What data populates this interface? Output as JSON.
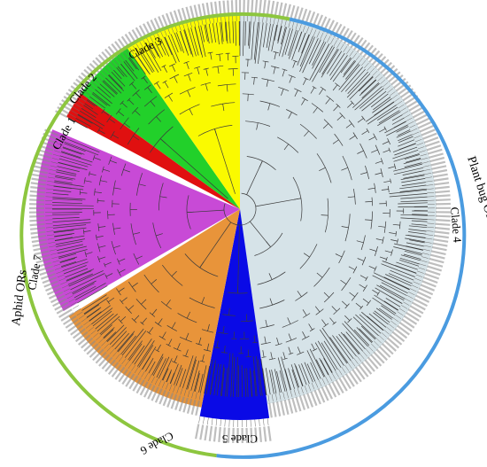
{
  "figure": {
    "type": "circular-phylogenetic-tree",
    "outer_groups": [
      {
        "id": "plant-bug",
        "label": "Plant bug ORs",
        "color": "#4a9be0"
      },
      {
        "id": "aphid",
        "label": "Aphid ORs",
        "color": "#8dc63f"
      }
    ],
    "clades": [
      {
        "id": "clade1",
        "label": "Clade 1",
        "color": "#e01010"
      },
      {
        "id": "clade2",
        "label": "Clade 2",
        "color": "#22d02a"
      },
      {
        "id": "clade3",
        "label": "Clade 3",
        "color": "#fafa00"
      },
      {
        "id": "clade4",
        "label": "Clade 4",
        "color": "#d6e3e8"
      },
      {
        "id": "clade5",
        "label": "Clade 5",
        "color": "#0a0ae6"
      },
      {
        "id": "clade6",
        "label": "Clade 6",
        "color": "#e8943a"
      },
      {
        "id": "clade7",
        "label": "Clade 7",
        "color": "#c84ad6"
      }
    ]
  }
}
